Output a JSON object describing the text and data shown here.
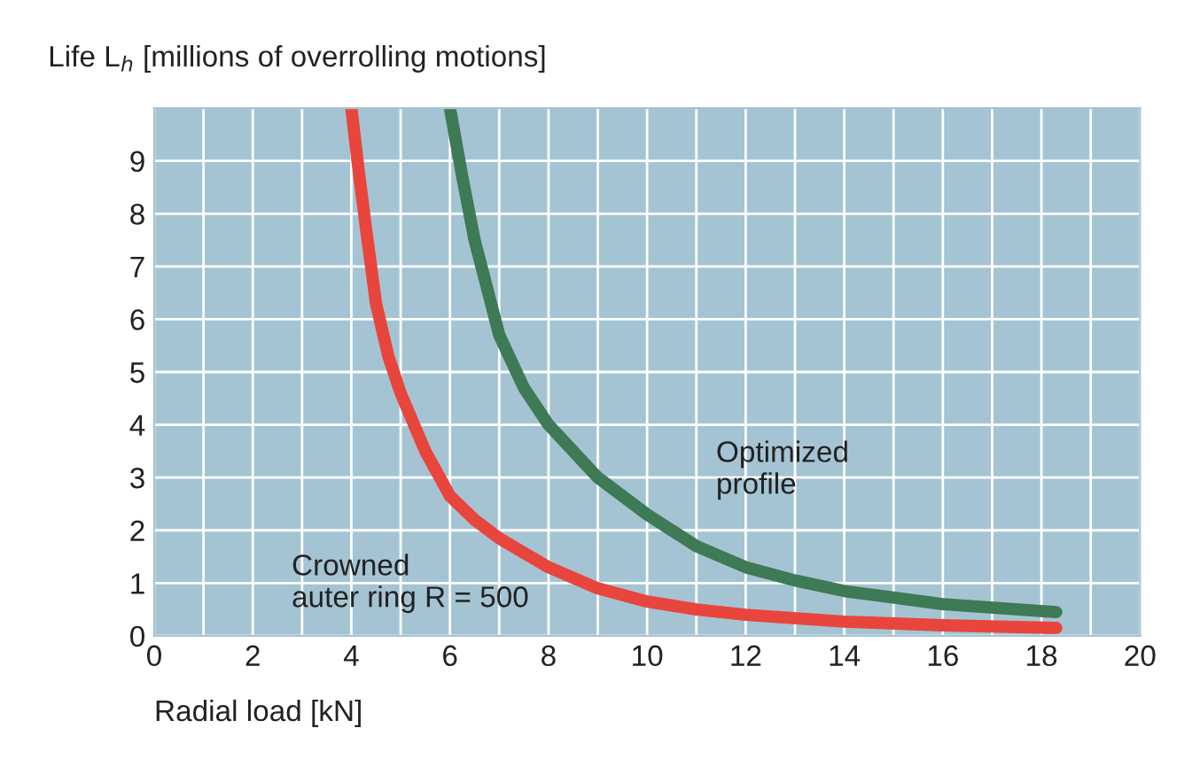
{
  "chart_data": {
    "type": "line",
    "ylabel": "Life L$_{h}$ [millions of overrolling motions]",
    "xlabel": "Radial load [kN]",
    "xlim": [
      0,
      20
    ],
    "ylim": [
      0,
      10
    ],
    "xticks": [
      0,
      {
        "value": 1,
        "label": null
      },
      2,
      {
        "value": 3,
        "label": null
      },
      4,
      {
        "value": 5,
        "label": null
      },
      6,
      {
        "value": 7,
        "label": null
      },
      8,
      {
        "value": 9,
        "label": null
      },
      10,
      {
        "value": 11,
        "label": null
      },
      12,
      {
        "value": 13,
        "label": null
      },
      14,
      {
        "value": 15,
        "label": null
      },
      16,
      {
        "value": 17,
        "label": null
      },
      18,
      {
        "value": 19,
        "label": null
      },
      20
    ],
    "yticks": [
      0,
      1,
      2,
      3,
      4,
      5,
      6,
      7,
      8,
      9
    ],
    "grid": true,
    "legend": false,
    "marker": "none",
    "line_style": "solid",
    "series": [
      {
        "name": "Crowned\nauter ring R = 500",
        "color": "#e8453c",
        "x": [
          4,
          4.15,
          4.3,
          4.5,
          4.75,
          5,
          5.5,
          6,
          6.5,
          7,
          8,
          9,
          10,
          11,
          12,
          14,
          16,
          18.3
        ],
        "values": [
          10,
          8.8,
          7.7,
          6.3,
          5.3,
          4.6,
          3.5,
          2.65,
          2.2,
          1.85,
          1.3,
          0.9,
          0.65,
          0.5,
          0.4,
          0.27,
          0.2,
          0.15
        ]
      },
      {
        "name": "Optimized\nprofile",
        "color": "#3d7a55",
        "x": [
          6,
          6.25,
          6.5,
          7,
          7.5,
          8,
          9,
          10,
          11,
          12,
          13,
          14,
          16,
          18.3
        ],
        "values": [
          10,
          8.7,
          7.5,
          5.7,
          4.7,
          4.0,
          3.0,
          2.3,
          1.7,
          1.3,
          1.05,
          0.85,
          0.6,
          0.45
        ]
      }
    ]
  }
}
